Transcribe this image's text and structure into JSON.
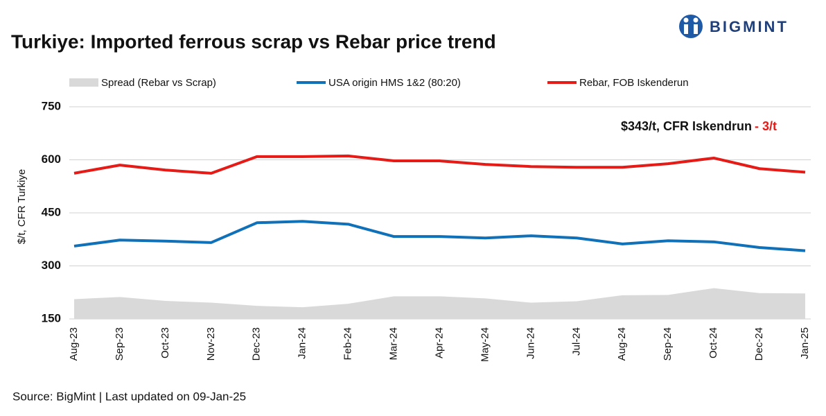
{
  "brand": "BIGMINT",
  "chart_data": {
    "type": "line",
    "title": "Turkiye: Imported ferrous scrap vs Rebar price trend",
    "y_label": "$/t, CFR Turkiye",
    "annotations": [
      "$343/t, CFR Iskendrun",
      "- 3/t"
    ],
    "source": "Source: BigMint  | Last updated on 09-Jan-25",
    "categories": [
      "Aug-23",
      "Sep-23",
      "Oct-23",
      "Nov-23",
      "Dec-23",
      "Jan-24",
      "Feb-24",
      "Mar-24",
      "Apr-24",
      "May-24",
      "Jun-24",
      "Jul-24",
      "Aug-24",
      "Sep-24",
      "Oct-24",
      "Dec-24",
      "Jan-25"
    ],
    "series": [
      {
        "name": "Spread (Rebar vs Scrap)",
        "color": "#d9d9d9",
        "style": "area",
        "values": [
          206,
          212,
          201,
          196,
          187,
          183,
          193,
          214,
          214,
          208,
          196,
          200,
          217,
          218,
          237,
          223,
          222
        ]
      },
      {
        "name": "USA origin HMS 1&2 (80:20)",
        "color": "#1070b8",
        "style": "line",
        "values": [
          356,
          373,
          370,
          366,
          422,
          426,
          418,
          383,
          383,
          379,
          385,
          379,
          362,
          371,
          368,
          352,
          343
        ]
      },
      {
        "name": "Rebar, FOB Iskenderun",
        "color": "#e41b17",
        "style": "line",
        "values": [
          562,
          585,
          571,
          562,
          609,
          609,
          611,
          597,
          597,
          587,
          581,
          579,
          579,
          589,
          605,
          575,
          565
        ]
      }
    ],
    "ylim": [
      150,
      750
    ],
    "yticks": [
      150,
      300,
      450,
      600,
      750
    ],
    "grid": true
  }
}
